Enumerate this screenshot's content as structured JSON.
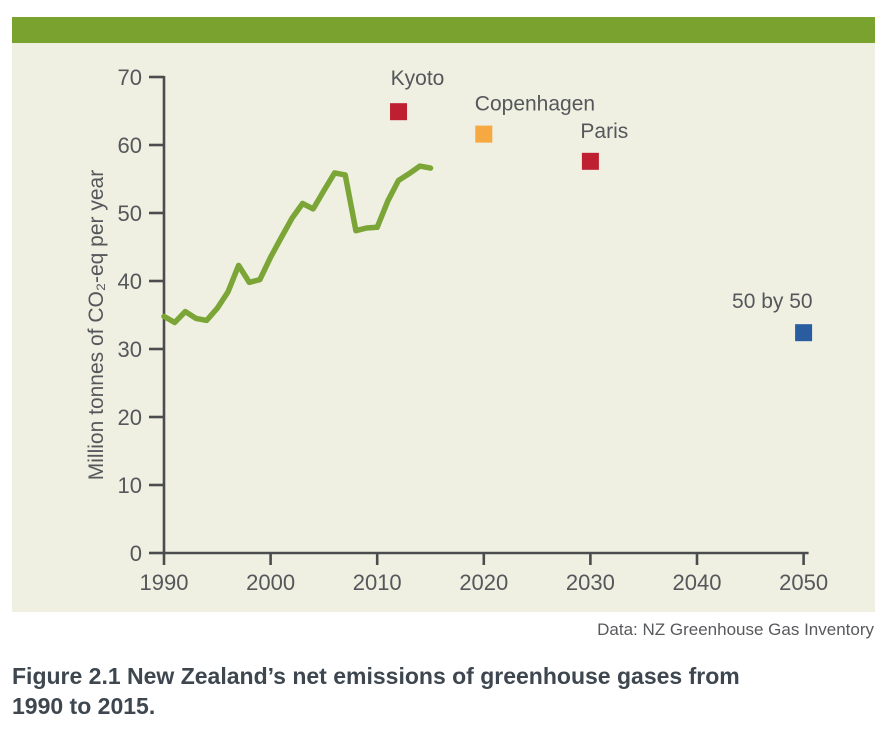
{
  "header": {
    "band_color": "#79a22e"
  },
  "panel": {
    "background_color": "#eff0e2"
  },
  "chart_data": {
    "type": "line",
    "ylabel": "Million tonnes of CO₂-eq per year",
    "xlabel": "",
    "xlim": [
      1990,
      2050
    ],
    "ylim": [
      0,
      70
    ],
    "x_ticks": [
      1990,
      2000,
      2010,
      2020,
      2030,
      2040,
      2050
    ],
    "y_ticks": [
      0,
      10,
      20,
      30,
      40,
      50,
      60,
      70
    ],
    "grid": false,
    "legend": "none",
    "axis_color": "#4b4c4e",
    "text_color": "#55575b",
    "series": [
      {
        "name": "New Zealand net greenhouse gas emissions",
        "color": "#7ba637",
        "x": [
          1990,
          1991,
          1992,
          1993,
          1994,
          1995,
          1996,
          1997,
          1998,
          1999,
          2000,
          2001,
          2002,
          2003,
          2004,
          2005,
          2006,
          2007,
          2008,
          2009,
          2010,
          2011,
          2012,
          2013,
          2014,
          2015
        ],
        "y": [
          34.8,
          33.9,
          35.5,
          34.5,
          34.2,
          36.0,
          38.4,
          42.3,
          39.8,
          40.2,
          43.5,
          46.4,
          49.2,
          51.4,
          50.6,
          53.3,
          55.9,
          55.6,
          47.4,
          47.8,
          47.9,
          51.8,
          54.8,
          55.8,
          56.9,
          56.6
        ]
      }
    ],
    "markers": [
      {
        "label": "Kyoto",
        "x": 2012,
        "y": 64.9,
        "color": "#be2032"
      },
      {
        "label": "Copenhagen",
        "x": 2020,
        "y": 61.6,
        "color": "#f6a841"
      },
      {
        "label": "Paris",
        "x": 2030,
        "y": 57.6,
        "color": "#be2032"
      },
      {
        "label": "50 by 50",
        "x": 2050,
        "y": 32.4,
        "color": "#2a5ca0"
      }
    ]
  },
  "source_note": "Data: NZ Greenhouse Gas Inventory",
  "caption": {
    "lines": [
      "Figure 2.1 New Zealand’s net emissions of greenhouse gases from",
      "1990 to 2015."
    ]
  }
}
